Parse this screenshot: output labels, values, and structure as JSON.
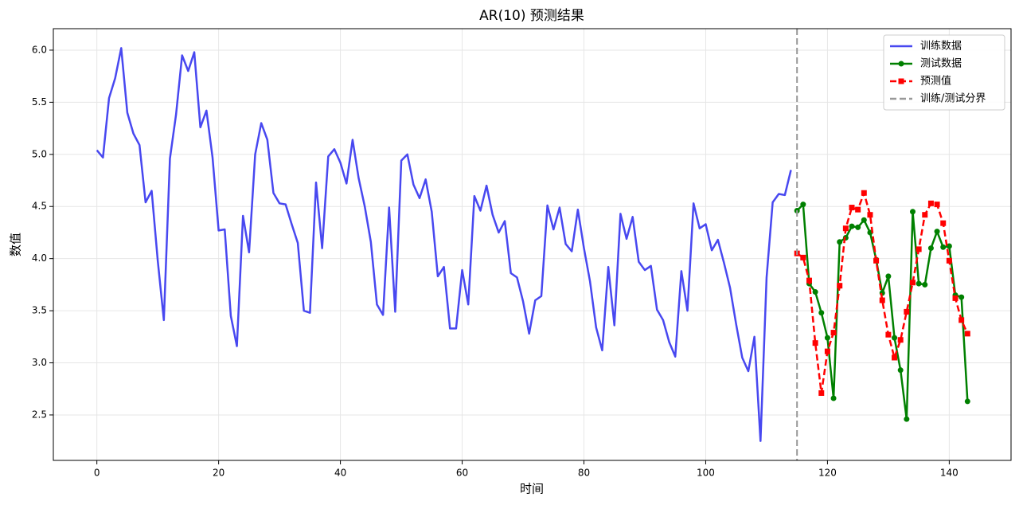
{
  "chart_data": {
    "type": "line",
    "title": "AR(10) 预测结果",
    "x_label": "时间",
    "y_label": "数值",
    "xlim": [
      -7.15,
      150.15
    ],
    "ylim": [
      2.064,
      6.206
    ],
    "xticks": [
      0,
      20,
      40,
      60,
      80,
      100,
      120,
      140
    ],
    "yticks": [
      2.5,
      {
        "value": 3,
        "label": "3.0"
      },
      3.5,
      {
        "value": 4,
        "label": "4.0"
      },
      4.5,
      {
        "value": 5,
        "label": "5.0"
      },
      5.5,
      {
        "value": 6,
        "label": "6.0"
      }
    ],
    "grid": true,
    "legend": "upper right",
    "series": [
      {
        "name": "训练数据",
        "color": "#4848f0",
        "marker": "none",
        "style": "solid",
        "x": [
          0,
          1,
          2,
          3,
          4,
          5,
          6,
          7,
          8,
          9,
          10,
          11,
          12,
          13,
          14,
          15,
          16,
          17,
          18,
          19,
          20,
          21,
          22,
          23,
          24,
          25,
          26,
          27,
          28,
          29,
          30,
          31,
          32,
          33,
          34,
          35,
          36,
          37,
          38,
          39,
          40,
          41,
          42,
          43,
          44,
          45,
          46,
          47,
          48,
          49,
          50,
          51,
          52,
          53,
          54,
          55,
          56,
          57,
          58,
          59,
          60,
          61,
          62,
          63,
          64,
          65,
          66,
          67,
          68,
          69,
          70,
          71,
          72,
          73,
          74,
          75,
          76,
          77,
          78,
          79,
          80,
          81,
          82,
          83,
          84,
          85,
          86,
          87,
          88,
          89,
          90,
          91,
          92,
          93,
          94,
          95,
          96,
          97,
          98,
          99,
          100,
          101,
          102,
          103,
          104,
          105,
          106,
          107,
          108,
          109,
          110,
          111,
          112,
          113,
          114
        ],
        "values": [
          5.04,
          4.97,
          5.54,
          5.73,
          6.02,
          5.4,
          5.2,
          5.09,
          4.54,
          4.65,
          3.98,
          3.41,
          4.96,
          5.38,
          5.95,
          5.8,
          5.98,
          5.26,
          5.42,
          4.97,
          4.27,
          4.28,
          3.45,
          3.16,
          4.41,
          4.06,
          5.0,
          5.3,
          5.14,
          4.63,
          4.53,
          4.52,
          4.33,
          4.15,
          3.5,
          3.48,
          4.73,
          4.1,
          4.98,
          5.05,
          4.92,
          4.72,
          5.14,
          4.77,
          4.5,
          4.16,
          3.56,
          3.46,
          4.49,
          3.49,
          4.94,
          5.0,
          4.71,
          4.58,
          4.76,
          4.45,
          3.83,
          3.92,
          3.33,
          3.33,
          3.89,
          3.56,
          4.6,
          4.46,
          4.7,
          4.42,
          4.25,
          4.36,
          3.86,
          3.82,
          3.59,
          3.28,
          3.6,
          3.64,
          4.51,
          4.28,
          4.49,
          4.14,
          4.07,
          4.47,
          4.1,
          3.78,
          3.34,
          3.12,
          3.92,
          3.36,
          4.43,
          4.19,
          4.4,
          3.97,
          3.89,
          3.93,
          3.51,
          3.41,
          3.2,
          3.06,
          3.88,
          3.5,
          4.53,
          4.29,
          4.33,
          4.08,
          4.18,
          3.96,
          3.72,
          3.37,
          3.05,
          2.92,
          3.25,
          2.25,
          3.82,
          4.54,
          4.62,
          4.61,
          4.85
        ]
      },
      {
        "name": "测试数据",
        "color": "#008000",
        "marker": "circle",
        "style": "solid",
        "x": [
          115,
          116,
          117,
          118,
          119,
          120,
          121,
          122,
          123,
          124,
          125,
          126,
          127,
          128,
          129,
          130,
          131,
          132,
          133,
          134,
          135,
          136,
          137,
          138,
          139,
          140,
          141,
          142,
          143
        ],
        "values": [
          4.46,
          4.52,
          3.76,
          3.68,
          3.48,
          3.24,
          2.66,
          4.16,
          4.2,
          4.31,
          4.3,
          4.37,
          4.25,
          3.99,
          3.67,
          3.83,
          3.24,
          2.93,
          2.46,
          4.45,
          3.76,
          3.75,
          4.1,
          4.26,
          4.11,
          4.12,
          3.65,
          3.63,
          2.63
        ]
      },
      {
        "name": "预测值",
        "color": "#ff0000",
        "marker": "square",
        "style": "dashed",
        "x": [
          115,
          116,
          117,
          118,
          119,
          120,
          121,
          122,
          123,
          124,
          125,
          126,
          127,
          128,
          129,
          130,
          131,
          132,
          133,
          134,
          135,
          136,
          137,
          138,
          139,
          140,
          141,
          142,
          143
        ],
        "values": [
          4.05,
          4.01,
          3.79,
          3.19,
          2.71,
          3.11,
          3.29,
          3.74,
          4.29,
          4.49,
          4.47,
          4.63,
          4.42,
          3.98,
          3.6,
          3.27,
          3.05,
          3.22,
          3.49,
          3.77,
          4.09,
          4.42,
          4.53,
          4.52,
          4.34,
          3.98,
          3.62,
          3.41,
          3.28
        ]
      }
    ],
    "boundary": {
      "name": "训练/测试分界",
      "x": 115,
      "color": "#999999",
      "style": "dashed"
    }
  }
}
